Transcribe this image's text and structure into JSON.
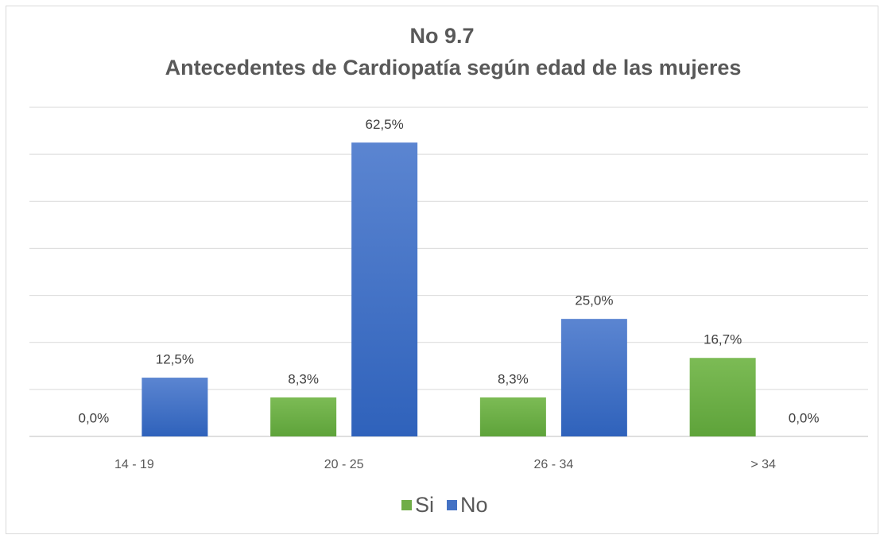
{
  "chart_data": {
    "type": "bar",
    "title": "No 9.7",
    "subtitle": "Antecedentes de Cardiopatía según edad de las mujeres",
    "categories": [
      "14 - 19",
      "20 - 25",
      "26 - 34",
      "> 34"
    ],
    "series": [
      {
        "name": "Si",
        "color": "#70ad47",
        "values": [
          0.0,
          8.3,
          8.3,
          16.7
        ],
        "value_labels": [
          "0,0%",
          "8,3%",
          "8,3%",
          "16,7%"
        ]
      },
      {
        "name": "No",
        "color": "#4472c4",
        "values": [
          12.5,
          62.5,
          25.0,
          0.0
        ],
        "value_labels": [
          "12,5%",
          "62,5%",
          "25,0%",
          "0,0%"
        ]
      }
    ],
    "ylim": [
      0,
      70
    ],
    "yticks": [
      0,
      10,
      20,
      30,
      40,
      50,
      60,
      70
    ],
    "grid": true,
    "legend": "bottom"
  }
}
